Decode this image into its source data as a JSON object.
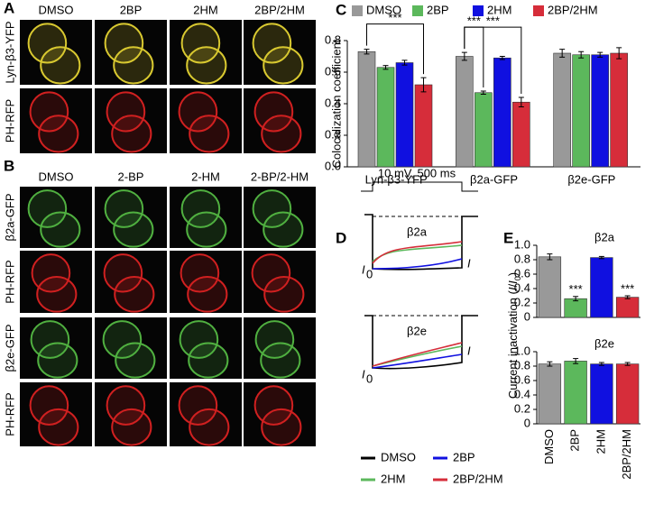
{
  "panels": {
    "A": {
      "letter": "A",
      "columns": [
        "DMSO",
        "2BP",
        "2HM",
        "2BP/2HM"
      ],
      "rows": [
        "Lyn-β3-YFP",
        "PH-RFP"
      ]
    },
    "B": {
      "letter": "B",
      "columns": [
        "DMSO",
        "2-BP",
        "2-HM",
        "2-BP/2-HM"
      ],
      "rows": [
        "β2a-GFP",
        "PH-RFP",
        "β2e-GFP",
        "PH-RFP"
      ]
    },
    "C": {
      "letter": "C"
    },
    "D": {
      "letter": "D",
      "pulse": "10 mV, 500 ms",
      "top_label": "β2a",
      "bottom_label": "β2e",
      "i0": "I",
      "i0_sub": "0",
      "i": "I",
      "legend": [
        {
          "name": "DMSO",
          "color": "#000000"
        },
        {
          "name": "2BP",
          "color": "#1010e0"
        },
        {
          "name": "2HM",
          "color": "#5cb85c"
        },
        {
          "name": "2BP/2HM",
          "color": "#d62d3a"
        }
      ]
    },
    "E": {
      "letter": "E",
      "ylabel_parts": [
        "Current inactivation (",
        "I",
        "/",
        "I",
        "0",
        ")"
      ]
    }
  },
  "chart_data": [
    {
      "type": "bar",
      "ylabel": "Colocalization coefficient",
      "categories": [
        "Lyn-β3-YFP",
        "β2a-GFP",
        "β2e-GFP"
      ],
      "series": [
        {
          "name": "DMSO",
          "color": "#999999",
          "values": [
            0.73,
            0.7,
            0.72
          ],
          "errors": [
            0.015,
            0.025,
            0.025
          ]
        },
        {
          "name": "2BP",
          "color": "#5cb85c",
          "values": [
            0.63,
            0.47,
            0.71
          ],
          "errors": [
            0.012,
            0.01,
            0.02
          ]
        },
        {
          "name": "2HM",
          "color": "#1010e0",
          "values": [
            0.66,
            0.69,
            0.71
          ],
          "errors": [
            0.015,
            0.01,
            0.015
          ]
        },
        {
          "name": "2BP/2HM",
          "color": "#d62d3a",
          "values": [
            0.52,
            0.41,
            0.72
          ],
          "errors": [
            0.045,
            0.03,
            0.035
          ]
        }
      ],
      "ylim": [
        0,
        0.8
      ],
      "yticks": [
        {
          "value": 0,
          "label": "0.0"
        },
        0.2,
        0.4,
        0.6,
        0.8
      ],
      "annotations": [
        "***",
        "***",
        "***"
      ]
    },
    {
      "type": "bar",
      "title": "β2a",
      "categories": [
        "DMSO",
        "2BP",
        "2HM",
        "2BP/2HM"
      ],
      "colors": [
        "#999999",
        "#5cb85c",
        "#1010e0",
        "#d62d3a"
      ],
      "values": [
        0.84,
        0.26,
        0.83,
        0.28
      ],
      "errors": [
        0.04,
        0.03,
        0.015,
        0.02
      ],
      "ylim": [
        0,
        1
      ],
      "yticks": [
        0,
        0.2,
        0.4,
        0.6,
        0.8,
        {
          "value": 1,
          "label": "1.0"
        }
      ],
      "annotations": [
        "***",
        "***"
      ]
    },
    {
      "type": "bar",
      "title": "β2e",
      "categories": [
        "DMSO",
        "2BP",
        "2HM",
        "2BP/2HM"
      ],
      "colors": [
        "#999999",
        "#5cb85c",
        "#1010e0",
        "#d62d3a"
      ],
      "values": [
        0.83,
        0.87,
        0.83,
        0.83
      ],
      "errors": [
        0.03,
        0.035,
        0.02,
        0.02
      ],
      "ylim": [
        0,
        1
      ],
      "yticks": [
        0,
        0.2,
        0.4,
        0.6,
        0.8,
        {
          "value": 1,
          "label": "1.0"
        }
      ]
    }
  ]
}
